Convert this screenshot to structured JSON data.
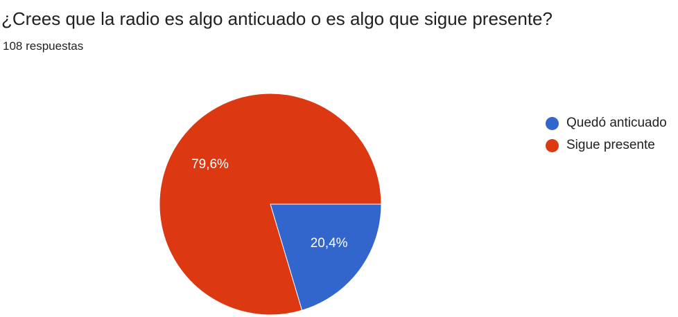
{
  "header": {
    "question": "¿Crees que la radio es algo anticuado o es algo que sigue presente?",
    "responses": "108 respuestas"
  },
  "chart_data": {
    "type": "pie",
    "title": "¿Crees que la radio es algo anticuado o es algo que sigue presente?",
    "categories": [
      "Quedó anticuado",
      "Sigue presente"
    ],
    "values": [
      20.4,
      79.6
    ],
    "labels": [
      "20,4%",
      "79,6%"
    ],
    "colors": [
      "#3366cc",
      "#dc3912"
    ],
    "legend_position": "right",
    "start_angle_deg": 90,
    "direction": "clockwise"
  }
}
